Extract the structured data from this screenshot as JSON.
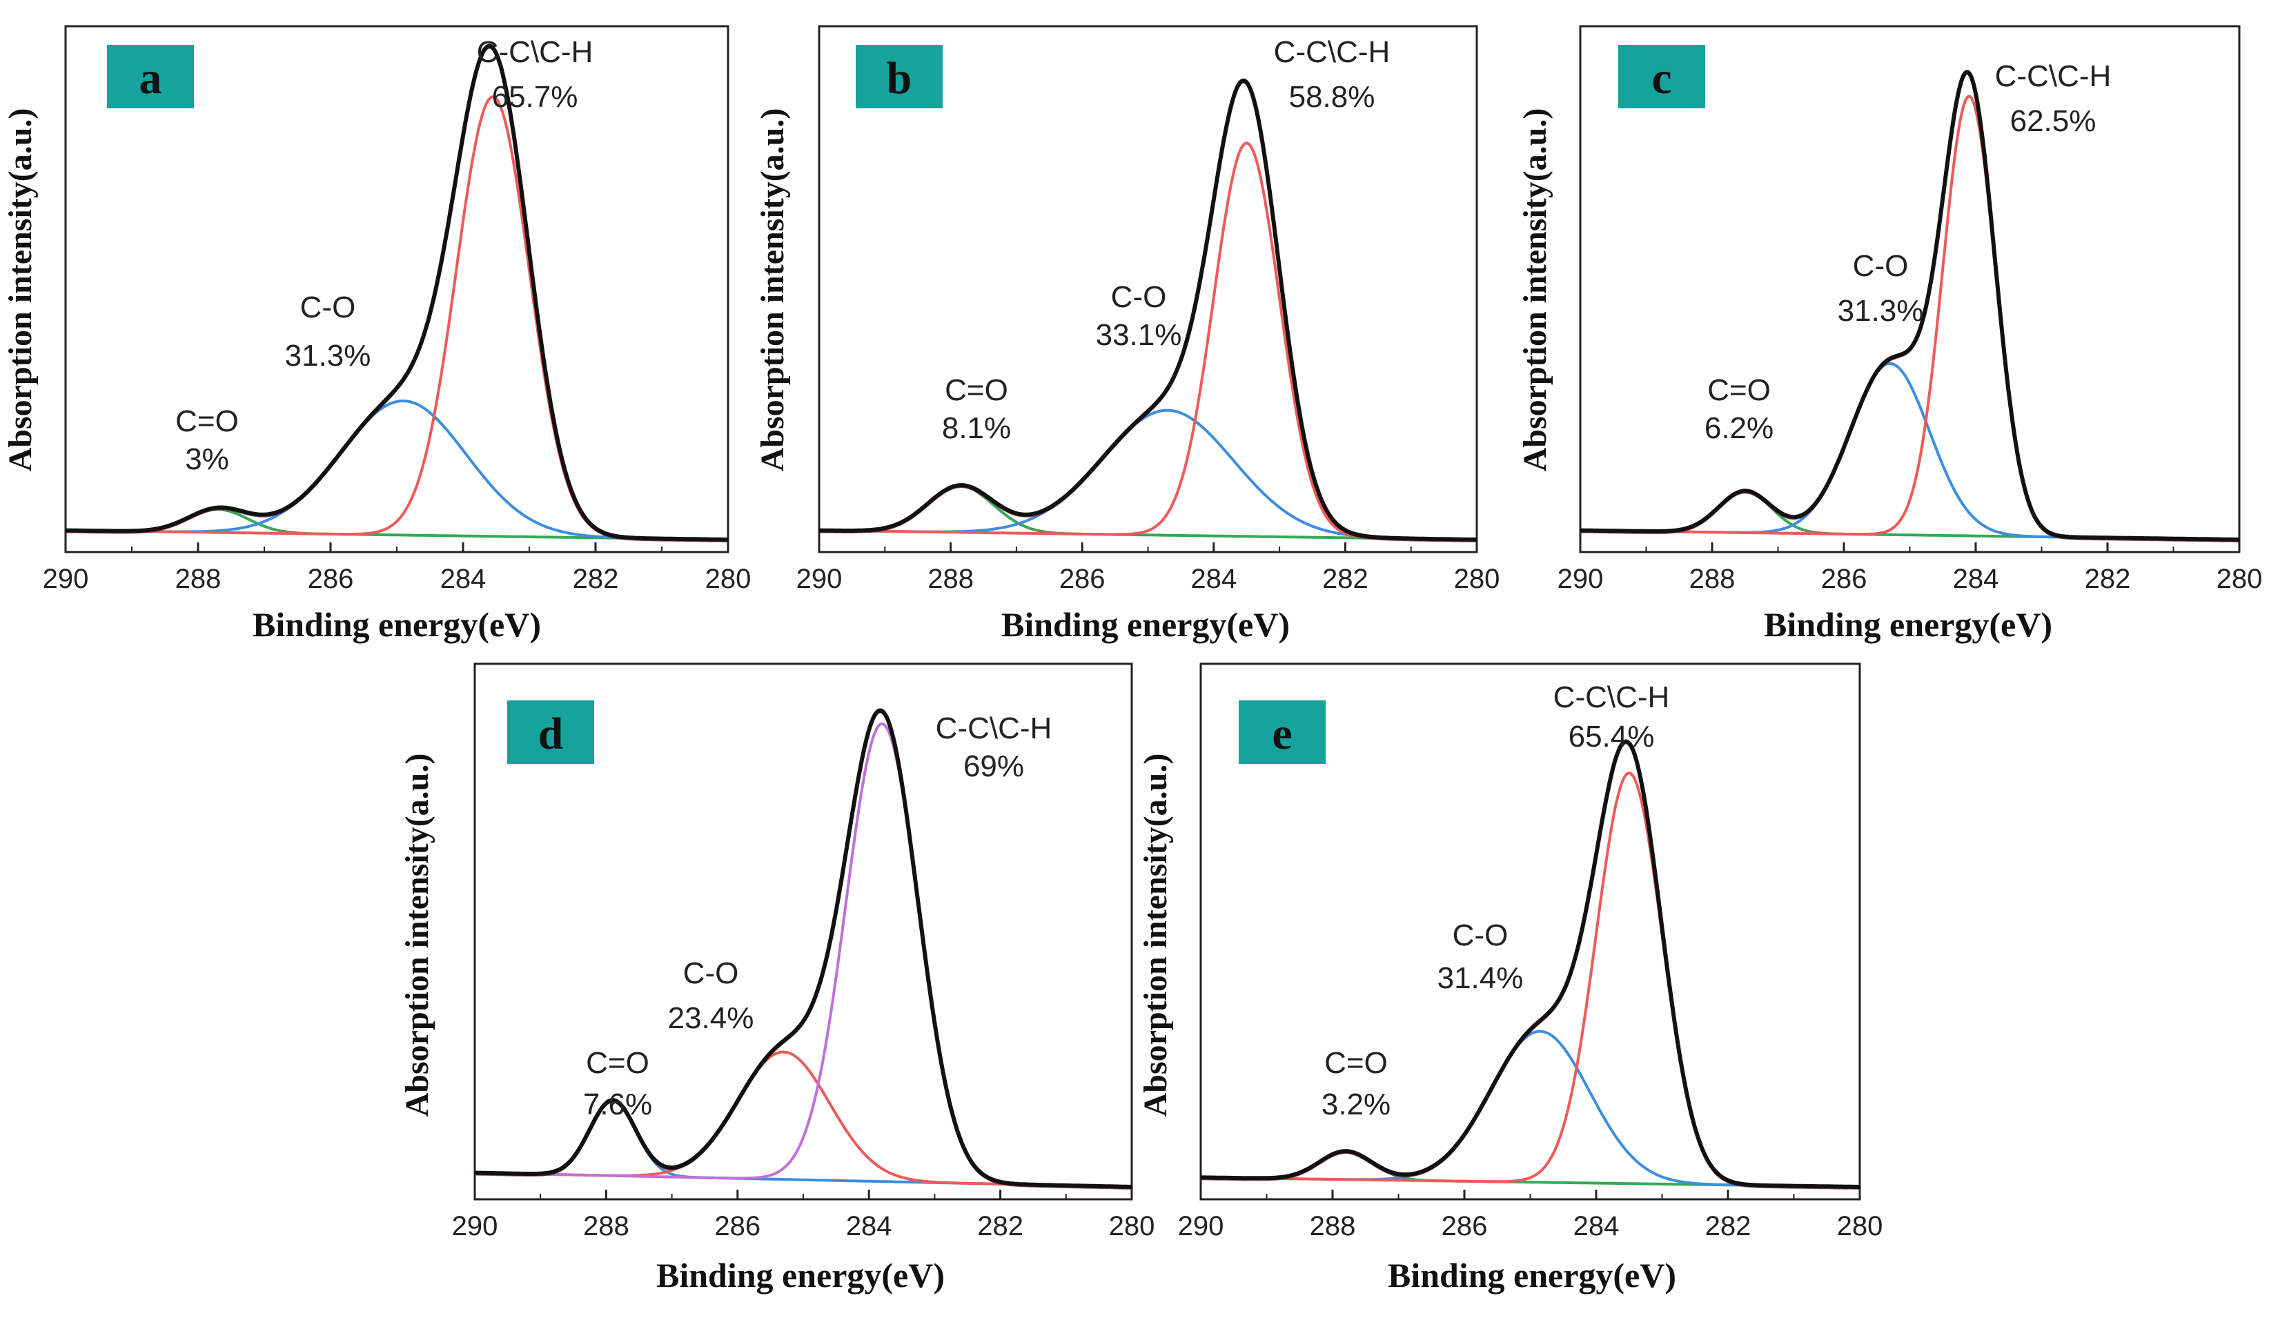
{
  "figure": {
    "panel_count": 5,
    "colors": {
      "envelope": "#111111",
      "fit": "#7a2a3a",
      "red": "#ee5a5a",
      "blue": "#3c8de0",
      "green": "#33aa55",
      "purple": "#c070d8",
      "baseline": "#222222",
      "baseline_green": "#33aa55",
      "label_bg": "#16a39e",
      "label_text": "#111111"
    }
  },
  "chart_data": [
    {
      "panel": "a",
      "type": "line",
      "xlabel": "Binding energy(eV)",
      "ylabel": "Absorption intensity(a.u.)",
      "xlim": [
        290,
        280
      ],
      "ylim": [
        0,
        1.05
      ],
      "xticks": [
        "290",
        "288",
        "286",
        "284",
        "282",
        "280"
      ],
      "baseline": [
        0.02,
        0.0
      ],
      "peaks": [
        {
          "name": "C=O",
          "pct": "3%",
          "center": 287.7,
          "height": 0.05,
          "sigma": 0.45,
          "color": "green"
        },
        {
          "name": "C-O",
          "pct": "31.3%",
          "center": 284.9,
          "height": 0.29,
          "sigma": 0.95,
          "color": "blue"
        },
        {
          "name": "C-C\\C-H",
          "pct": "65.7%",
          "center": 283.55,
          "height": 0.95,
          "sigma": 0.55,
          "color": "red"
        }
      ]
    },
    {
      "panel": "b",
      "type": "line",
      "xlabel": "Binding energy(eV)",
      "ylabel": "Absorption intensity(a.u.)",
      "xlim": [
        290,
        280
      ],
      "ylim": [
        0,
        1.05
      ],
      "xticks": [
        "290",
        "288",
        "286",
        "284",
        "282",
        "280"
      ],
      "baseline": [
        0.02,
        0.0
      ],
      "peaks": [
        {
          "name": "C=O",
          "pct": "8.1%",
          "center": 287.85,
          "height": 0.1,
          "sigma": 0.5,
          "color": "green"
        },
        {
          "name": "C-O",
          "pct": "33.1%",
          "center": 284.7,
          "height": 0.27,
          "sigma": 1.0,
          "color": "blue"
        },
        {
          "name": "C-C\\C-H",
          "pct": "58.8%",
          "center": 283.5,
          "height": 0.85,
          "sigma": 0.5,
          "color": "red"
        }
      ]
    },
    {
      "panel": "c",
      "type": "line",
      "xlabel": "Binding energy(eV)",
      "ylabel": "Absorption intensity(a.u.)",
      "xlim": [
        290,
        280
      ],
      "ylim": [
        0,
        1.05
      ],
      "xticks": [
        "290",
        "288",
        "286",
        "284",
        "282",
        "280"
      ],
      "baseline": [
        0.02,
        0.0
      ],
      "peaks": [
        {
          "name": "C=O",
          "pct": "6.2%",
          "center": 287.5,
          "height": 0.09,
          "sigma": 0.4,
          "color": "green"
        },
        {
          "name": "C-O",
          "pct": "31.3%",
          "center": 285.3,
          "height": 0.37,
          "sigma": 0.6,
          "color": "blue"
        },
        {
          "name": "C-C\\C-H",
          "pct": "62.5%",
          "center": 284.1,
          "height": 0.95,
          "sigma": 0.4,
          "color": "red"
        }
      ]
    },
    {
      "panel": "d",
      "type": "line",
      "xlabel": "Binding energy(eV)",
      "ylabel": "Absorption intensity(a.u.)",
      "xlim": [
        290,
        280
      ],
      "ylim": [
        0,
        1.05
      ],
      "xticks": [
        "290",
        "288",
        "286",
        "284",
        "282",
        "280"
      ],
      "baseline": [
        0.03,
        0.0
      ],
      "baseline_color": "baseline_green",
      "peaks": [
        {
          "name": "C=O",
          "pct": "7.6%",
          "center": 287.9,
          "height": 0.16,
          "sigma": 0.35,
          "color": "blue"
        },
        {
          "name": "C-O",
          "pct": "23.4%",
          "center": 285.3,
          "height": 0.27,
          "sigma": 0.7,
          "color": "red"
        },
        {
          "name": "C-C\\C-H",
          "pct": "69%",
          "center": 283.8,
          "height": 0.97,
          "sigma": 0.55,
          "color": "purple"
        }
      ]
    },
    {
      "panel": "e",
      "type": "line",
      "xlabel": "Binding energy(eV)",
      "ylabel": "Absorption intensity(a.u.)",
      "xlim": [
        290,
        280
      ],
      "ylim": [
        0,
        1.05
      ],
      "xticks": [
        "290",
        "288",
        "286",
        "284",
        "282",
        "280"
      ],
      "baseline": [
        0.02,
        0.0
      ],
      "peaks": [
        {
          "name": "C=O",
          "pct": "3.2%",
          "center": 287.8,
          "height": 0.06,
          "sigma": 0.4,
          "color": "green"
        },
        {
          "name": "C-O",
          "pct": "31.4%",
          "center": 284.85,
          "height": 0.32,
          "sigma": 0.75,
          "color": "blue"
        },
        {
          "name": "C-C\\C-H",
          "pct": "65.4%",
          "center": 283.5,
          "height": 0.87,
          "sigma": 0.5,
          "color": "red"
        }
      ]
    }
  ]
}
